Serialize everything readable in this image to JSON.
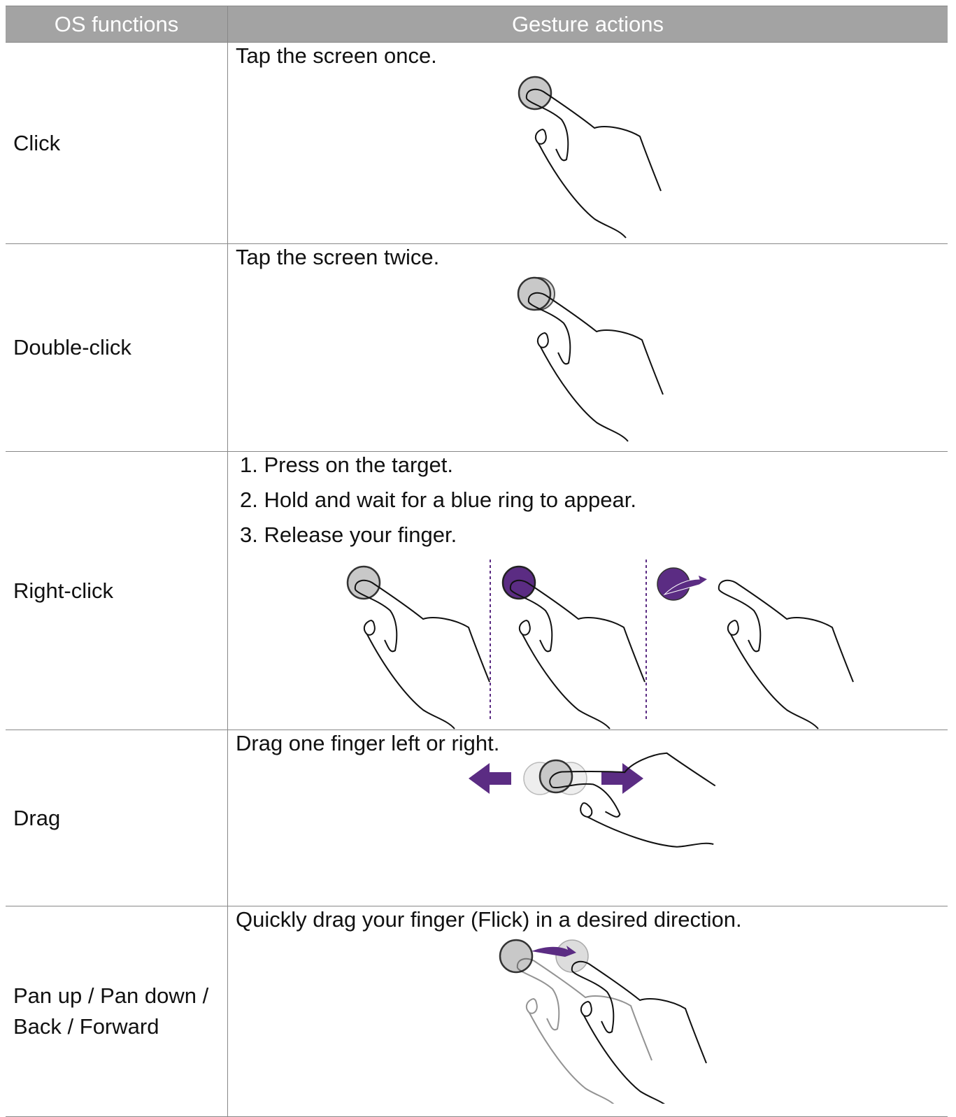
{
  "table": {
    "header": [
      "OS functions",
      "Gesture actions"
    ],
    "rows": [
      {
        "function": [
          "Click"
        ],
        "actions": [
          "Tap the screen once."
        ]
      },
      {
        "function": [
          "Double-click"
        ],
        "actions": [
          "Tap the screen twice."
        ]
      },
      {
        "function": [
          "Right-click"
        ],
        "actions": [
          "1. Press on the target.",
          "2. Hold and wait for a blue ring to appear.",
          "3. Release your finger."
        ]
      },
      {
        "function": [
          "Drag"
        ],
        "actions": [
          "Drag one finger left or right."
        ]
      },
      {
        "function": [
          "Pan up / Pan down /",
          "Back / Forward"
        ],
        "actions": [
          "Quickly drag your finger (Flick) in a desired direction."
        ]
      }
    ]
  }
}
